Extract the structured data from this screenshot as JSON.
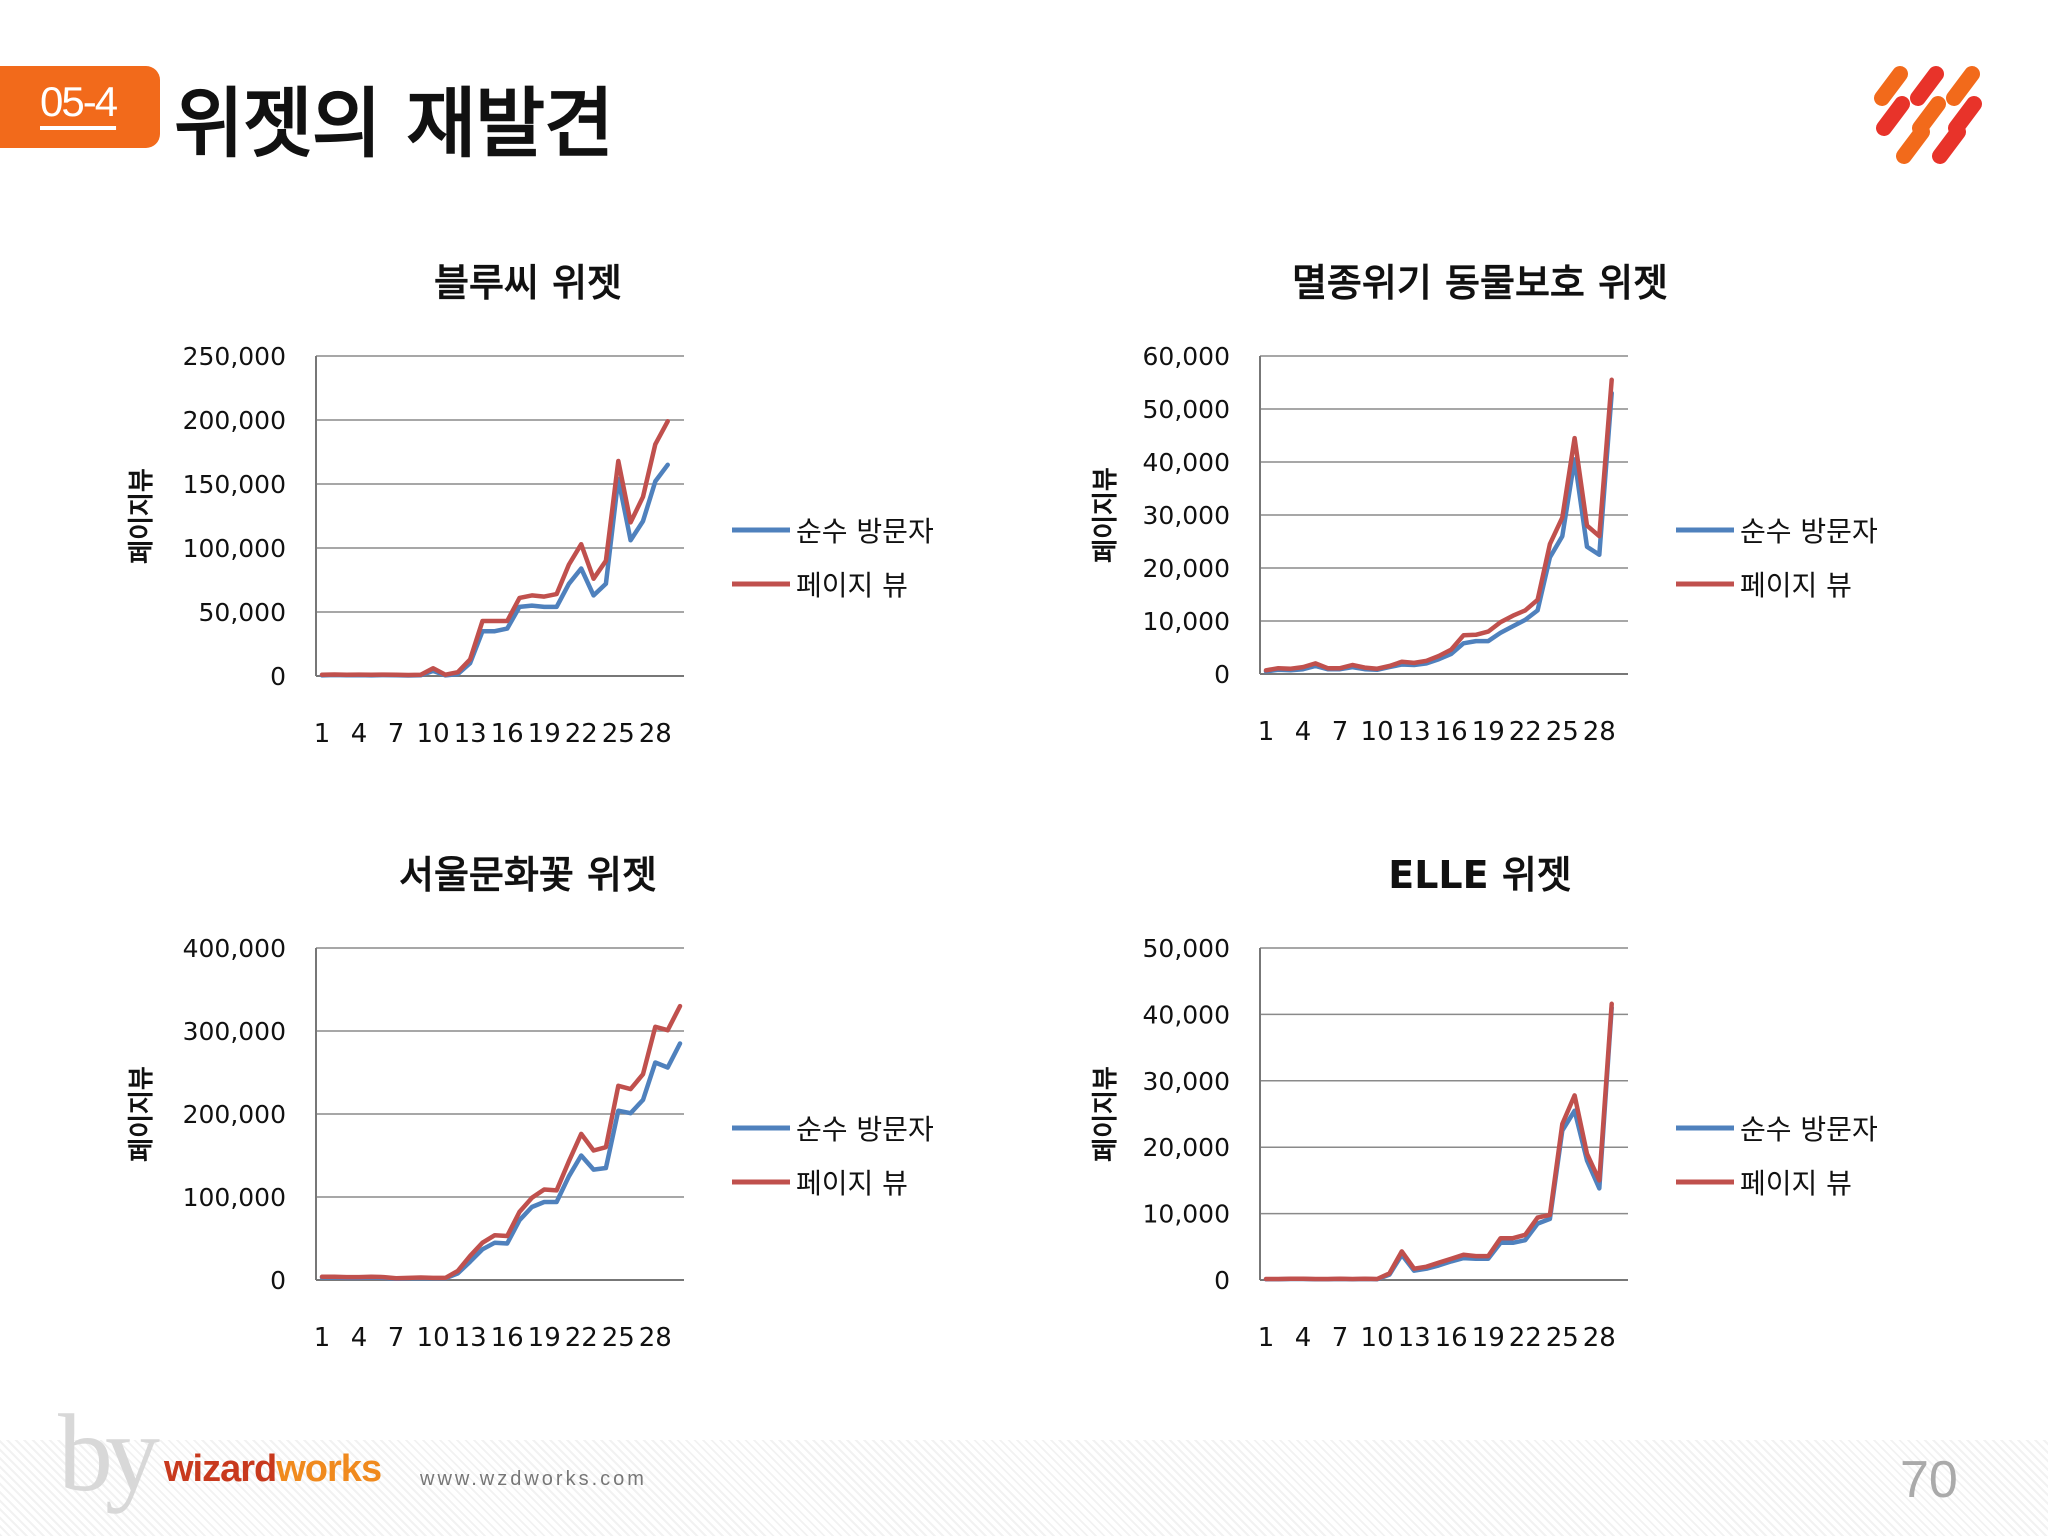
{
  "header": {
    "section_number": "05-4",
    "title": "위젯의 재발견"
  },
  "footer": {
    "by": "by",
    "brand_part1": "wizard",
    "brand_part2": "works",
    "url": "www.wzdworks.com",
    "page_number": "70"
  },
  "colors": {
    "accent": "#f26a1b",
    "series_visitors": "#4f81bd",
    "series_pageviews": "#c0504d"
  },
  "chart_data": [
    {
      "type": "line",
      "title": "블루씨 위젯",
      "ylabel": "페이지뷰",
      "xlabel": "",
      "ylim": [
        0,
        250000
      ],
      "yticks": [
        "0",
        "50,000",
        "100,000",
        "150,000",
        "200,000",
        "250,000"
      ],
      "x": [
        1,
        2,
        3,
        4,
        5,
        6,
        7,
        8,
        9,
        10,
        11,
        12,
        13,
        14,
        15,
        16,
        17,
        18,
        19,
        20,
        21,
        22,
        23,
        24,
        25,
        26,
        27,
        28,
        29,
        30
      ],
      "xtick_labels": [
        "1",
        "4",
        "7",
        "10",
        "13",
        "16",
        "19",
        "22",
        "25",
        "28"
      ],
      "legend_position": "right",
      "series": [
        {
          "name": "순수 방문자",
          "color": "#4f81bd",
          "values": [
            500,
            800,
            600,
            700,
            500,
            700,
            600,
            400,
            600,
            4000,
            500,
            1500,
            10000,
            35000,
            35000,
            37000,
            54000,
            55000,
            54000,
            54000,
            72000,
            84000,
            63000,
            72000,
            154000,
            106000,
            121000,
            152000,
            165000,
            null
          ]
        },
        {
          "name": "페이지 뷰",
          "color": "#c0504d",
          "values": [
            1000,
            1200,
            1000,
            1100,
            1000,
            1100,
            1000,
            800,
            1000,
            6000,
            1000,
            3000,
            13000,
            43000,
            43000,
            43000,
            61000,
            63000,
            62000,
            64000,
            87000,
            103000,
            76000,
            90000,
            168000,
            120000,
            140000,
            181000,
            199000,
            null
          ]
        }
      ]
    },
    {
      "type": "line",
      "title": "멸종위기 동물보호 위젯",
      "ylabel": "페이지뷰",
      "xlabel": "",
      "ylim": [
        0,
        60000
      ],
      "yticks": [
        "0",
        "10,000",
        "20,000",
        "30,000",
        "40,000",
        "50,000",
        "60,000"
      ],
      "x": [
        1,
        2,
        3,
        4,
        5,
        6,
        7,
        8,
        9,
        10,
        11,
        12,
        13,
        14,
        15,
        16,
        17,
        18,
        19,
        20,
        21,
        22,
        23,
        24,
        25,
        26,
        27,
        28,
        29,
        30
      ],
      "xtick_labels": [
        "1",
        "4",
        "7",
        "10",
        "13",
        "16",
        "19",
        "22",
        "25",
        "28"
      ],
      "legend_position": "right",
      "series": [
        {
          "name": "순수 방문자",
          "color": "#4f81bd",
          "values": [
            500,
            800,
            700,
            900,
            1500,
            900,
            900,
            1300,
            900,
            800,
            1300,
            1800,
            1700,
            2000,
            2800,
            3800,
            5800,
            6200,
            6200,
            7800,
            9000,
            10200,
            12000,
            22000,
            26000,
            40500,
            24000,
            22500,
            53000,
            null
          ]
        },
        {
          "name": "페이지 뷰",
          "color": "#c0504d",
          "values": [
            700,
            1100,
            1000,
            1300,
            2000,
            1100,
            1100,
            1700,
            1200,
            1000,
            1500,
            2300,
            2100,
            2500,
            3400,
            4600,
            7300,
            7400,
            8000,
            9800,
            11000,
            12000,
            14000,
            24500,
            29500,
            44500,
            28000,
            26000,
            55500,
            null
          ]
        }
      ]
    },
    {
      "type": "line",
      "title": "서울문화꽃 위젯",
      "ylabel": "페이지뷰",
      "xlabel": "",
      "ylim": [
        0,
        400000
      ],
      "yticks": [
        "0",
        "100,000",
        "200,000",
        "300,000",
        "400,000"
      ],
      "x": [
        1,
        2,
        3,
        4,
        5,
        6,
        7,
        8,
        9,
        10,
        11,
        12,
        13,
        14,
        15,
        16,
        17,
        18,
        19,
        20,
        21,
        22,
        23,
        24,
        25,
        26,
        27,
        28,
        29,
        30
      ],
      "xtick_labels": [
        "1",
        "4",
        "7",
        "10",
        "13",
        "16",
        "19",
        "22",
        "25",
        "28"
      ],
      "legend_position": "right",
      "series": [
        {
          "name": "순수 방문자",
          "color": "#4f81bd",
          "values": [
            3000,
            3000,
            2500,
            2500,
            3000,
            2500,
            1500,
            2000,
            2000,
            2000,
            2000,
            8000,
            22000,
            37000,
            45000,
            44000,
            72000,
            88000,
            94000,
            94000,
            125000,
            150000,
            133000,
            135000,
            204000,
            201000,
            217000,
            262000,
            256000,
            285000
          ]
        },
        {
          "name": "페이지 뷰",
          "color": "#c0504d",
          "values": [
            4000,
            4000,
            3500,
            3500,
            4000,
            3500,
            2000,
            2500,
            3000,
            2500,
            2500,
            11000,
            29000,
            45000,
            54000,
            53000,
            82000,
            99000,
            109000,
            108000,
            143000,
            176000,
            156000,
            160000,
            234000,
            230000,
            248000,
            305000,
            301000,
            330000
          ]
        }
      ]
    },
    {
      "type": "line",
      "title": "ELLE 위젯",
      "ylabel": "페이지뷰",
      "xlabel": "",
      "ylim": [
        0,
        50000
      ],
      "yticks": [
        "0",
        "10,000",
        "20,000",
        "30,000",
        "40,000",
        "50,000"
      ],
      "x": [
        1,
        2,
        3,
        4,
        5,
        6,
        7,
        8,
        9,
        10,
        11,
        12,
        13,
        14,
        15,
        16,
        17,
        18,
        19,
        20,
        21,
        22,
        23,
        24,
        25,
        26,
        27,
        28,
        29,
        30
      ],
      "xtick_labels": [
        "1",
        "4",
        "7",
        "10",
        "13",
        "16",
        "19",
        "22",
        "25",
        "28"
      ],
      "legend_position": "right",
      "series": [
        {
          "name": "순수 방문자",
          "color": "#4f81bd",
          "values": [
            100,
            100,
            150,
            150,
            100,
            100,
            150,
            100,
            150,
            100,
            800,
            3800,
            1400,
            1700,
            2200,
            2800,
            3300,
            3200,
            3200,
            5600,
            5600,
            6000,
            8500,
            9200,
            22500,
            25500,
            18000,
            13800,
            41000,
            null
          ]
        },
        {
          "name": "페이지 뷰",
          "color": "#c0504d",
          "values": [
            150,
            150,
            200,
            200,
            150,
            150,
            200,
            150,
            200,
            150,
            1000,
            4300,
            1700,
            2000,
            2600,
            3200,
            3800,
            3600,
            3600,
            6300,
            6300,
            6800,
            9400,
            9800,
            23500,
            27800,
            19000,
            15000,
            41600,
            null
          ]
        }
      ]
    }
  ]
}
